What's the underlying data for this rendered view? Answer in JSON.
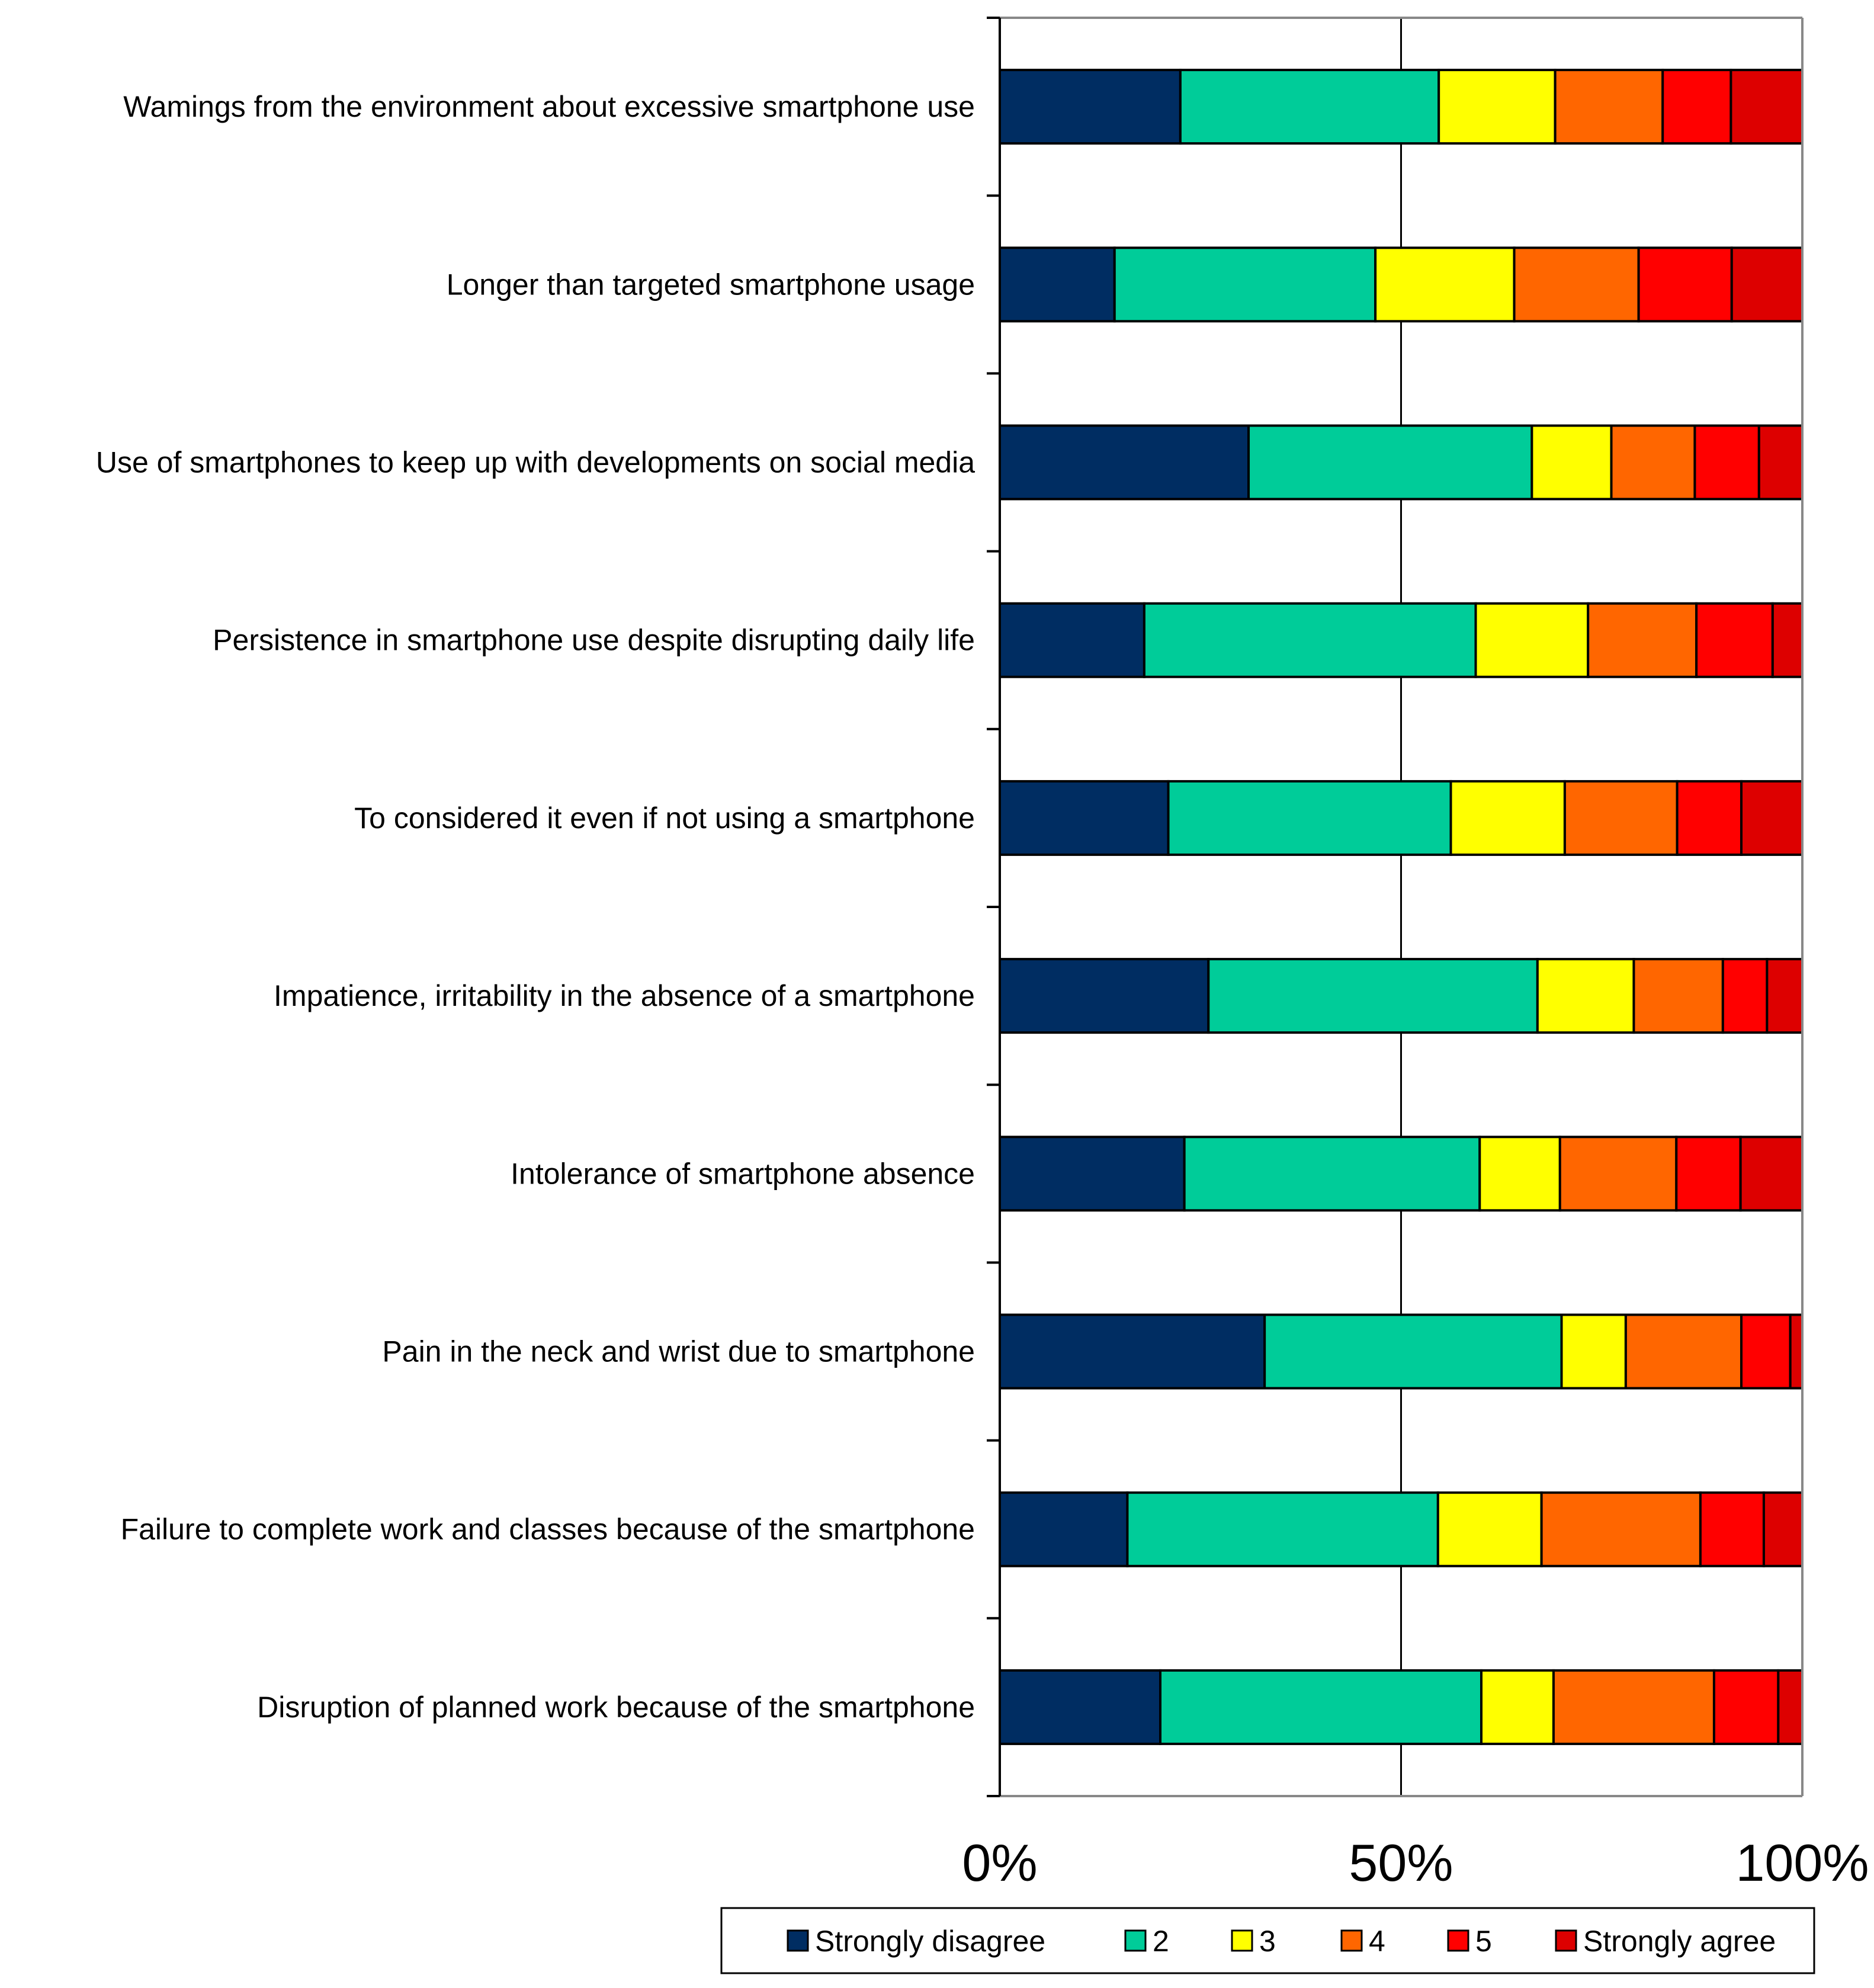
{
  "chart_data": {
    "type": "bar",
    "orientation": "horizontal",
    "stacked": true,
    "normalized": true,
    "categories": [
      "Wamings from the environment about excessive smartphone use",
      "Longer than targeted smartphone usage",
      "Use of smartphones to keep up with developments on social media",
      "Persistence in smartphone use despite disrupting daily life",
      "To considered it even if not using a smartphone",
      "Impatience, irritability in the absence of a smartphone",
      "Intolerance of smartphone absence",
      "Pain in the neck and wrist due to smartphone",
      "Failure to complete work and classes because of the smartphone",
      "Disruption of planned work because of the smartphone"
    ],
    "series": [
      {
        "name": "Strongly disagree",
        "color": "#002D62",
        "values": [
          22.5,
          14.3,
          31.0,
          18.0,
          21.0,
          26.0,
          23.0,
          33.0,
          15.9,
          20.0
        ]
      },
      {
        "name": "2",
        "color": "#00CC99",
        "values": [
          32.2,
          32.5,
          35.3,
          41.3,
          35.2,
          41.0,
          36.8,
          37.0,
          38.7,
          40.0
        ]
      },
      {
        "name": "3",
        "color": "#FFFF00",
        "values": [
          14.5,
          17.3,
          9.9,
          14.0,
          14.2,
          12.0,
          10.0,
          8.0,
          12.9,
          9.0
        ]
      },
      {
        "name": "4",
        "color": "#FF6600",
        "values": [
          13.4,
          15.5,
          10.4,
          13.5,
          14.0,
          11.1,
          14.5,
          14.4,
          19.8,
          20.0
        ]
      },
      {
        "name": "5",
        "color": "#FF0000",
        "values": [
          8.5,
          11.6,
          8.0,
          9.5,
          8.0,
          5.5,
          8.0,
          6.1,
          7.9,
          8.0
        ]
      },
      {
        "name": "Strongly agree",
        "color": "#DD0000",
        "values": [
          8.9,
          8.8,
          5.4,
          3.7,
          7.6,
          4.4,
          7.7,
          1.5,
          4.8,
          3.0
        ]
      }
    ],
    "xlim": [
      0,
      100
    ],
    "xticks": [
      "0%",
      "50%",
      "100%"
    ],
    "grid": "vertical at 50%",
    "legend_position": "bottom",
    "title": "",
    "xlabel": "",
    "ylabel": ""
  }
}
